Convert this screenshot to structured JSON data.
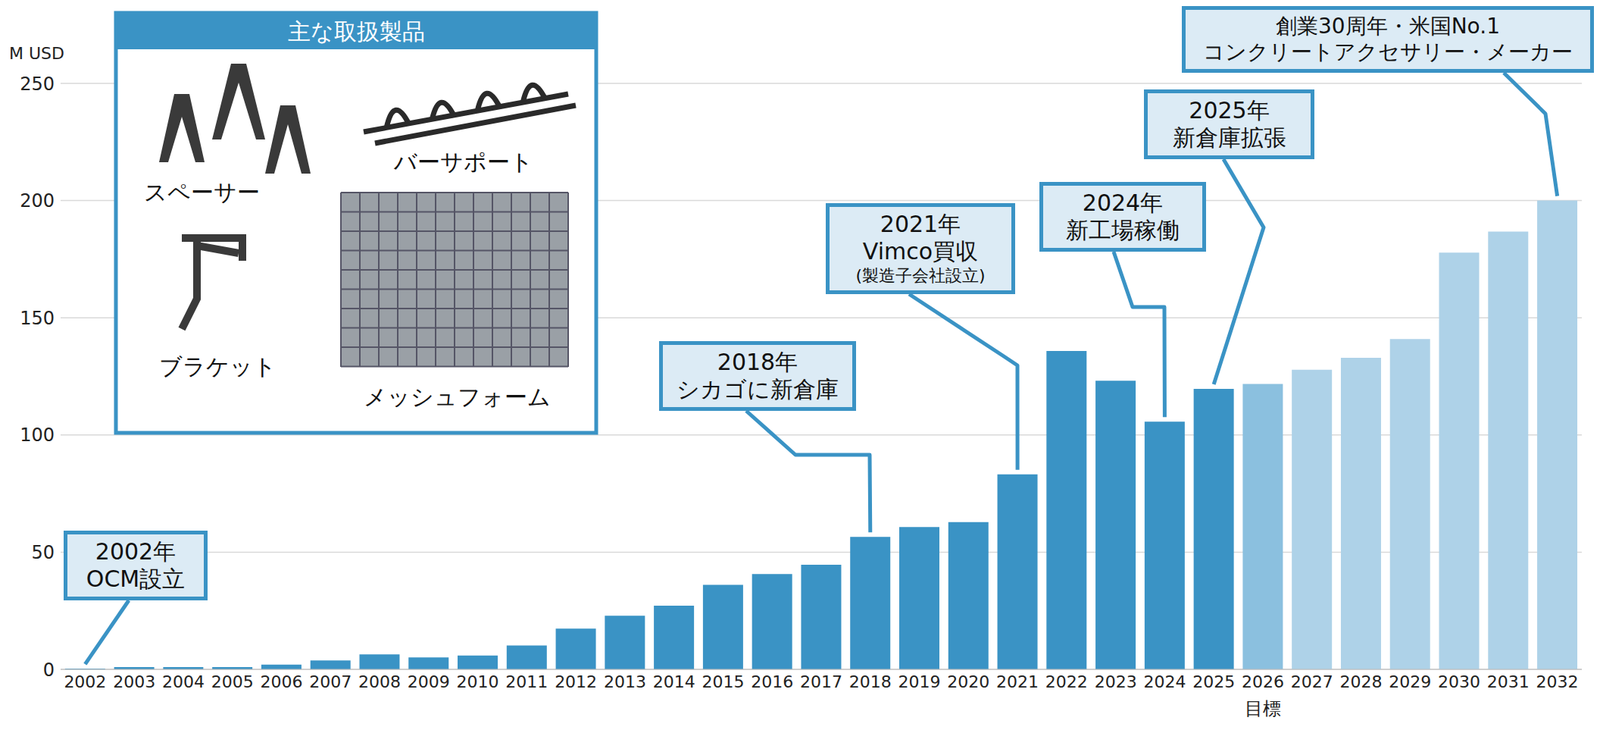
{
  "chart_data": {
    "type": "bar",
    "y_label": "M USD",
    "categories": [
      "2002",
      "2003",
      "2004",
      "2005",
      "2006",
      "2007",
      "2008",
      "2009",
      "2010",
      "2011",
      "2012",
      "2013",
      "2014",
      "2015",
      "2016",
      "2017",
      "2018",
      "2019",
      "2020",
      "2021",
      "2022",
      "2023",
      "2024",
      "2025",
      "2026",
      "2027",
      "2028",
      "2029",
      "2030",
      "2031",
      "2032"
    ],
    "values": [
      0.3,
      1,
      1,
      1,
      2,
      3.8,
      6.4,
      5.1,
      5.9,
      10.2,
      17.4,
      22.9,
      27.2,
      36.1,
      40.7,
      44.6,
      56.5,
      60.7,
      62.8,
      83.2,
      135.8,
      123.1,
      105.7,
      119.7,
      121.8,
      127.8,
      132.9,
      140.9,
      177.8,
      186.8,
      200
    ],
    "colors": [
      "#3A93C5",
      "#3A93C5",
      "#3A93C5",
      "#3A93C5",
      "#3A93C5",
      "#3A93C5",
      "#3A93C5",
      "#3A93C5",
      "#3A93C5",
      "#3A93C5",
      "#3A93C5",
      "#3A93C5",
      "#3A93C5",
      "#3A93C5",
      "#3A93C5",
      "#3A93C5",
      "#3A93C5",
      "#3A93C5",
      "#3A93C5",
      "#3A93C5",
      "#3A93C5",
      "#3A93C5",
      "#3A93C5",
      "#3A93C5",
      "#8BC0DF",
      "#AED2E8",
      "#AED2E8",
      "#AED2E8",
      "#AED2E8",
      "#AED2E8",
      "#AED2E8"
    ],
    "ylim": [
      0,
      250
    ],
    "yticks": [
      0,
      50,
      100,
      150,
      200,
      250
    ],
    "grid": true,
    "x_note": {
      "x": "2026",
      "label": "目標"
    },
    "annotations": [
      {
        "x": "2002",
        "lines": [
          "2002年",
          "OCM設立"
        ]
      },
      {
        "x": "2018",
        "lines": [
          "2018年",
          "シカゴに新倉庫"
        ]
      },
      {
        "x": "2021",
        "lines": [
          "2021年",
          "Vimco買収",
          "(製造子会社設立)"
        ]
      },
      {
        "x": "2024",
        "lines": [
          "2024年",
          "新工場稼働"
        ]
      },
      {
        "x": "2025",
        "lines": [
          "2025年",
          "新倉庫拡張"
        ]
      },
      {
        "x": "2032",
        "lines": [
          "創業30周年・米国No.1",
          "コンクリートアクセサリー・メーカー"
        ]
      }
    ],
    "product_panel": {
      "title": "主な取扱製品",
      "items": [
        "スペーサー",
        "バーサポート",
        "ブラケット",
        "メッシュフォーム"
      ]
    }
  }
}
